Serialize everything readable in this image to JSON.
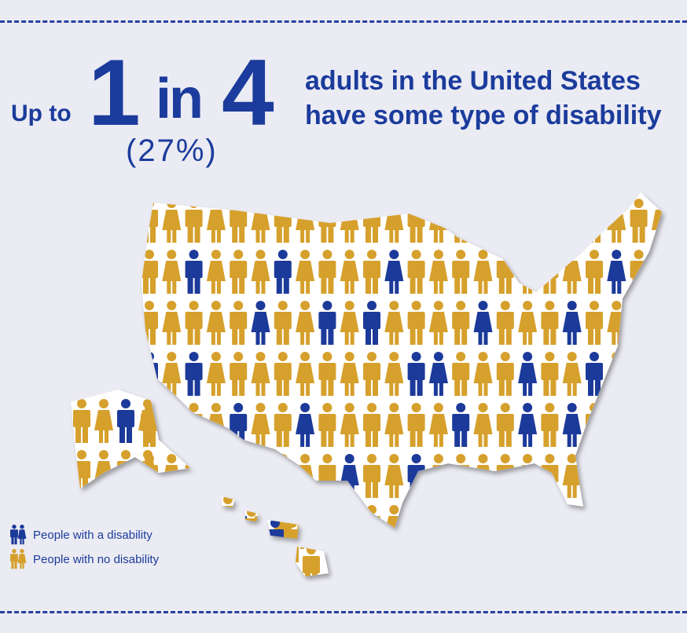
{
  "headline": {
    "prefix": "Up to",
    "numerator": "1",
    "word_in": "in",
    "denominator": "4",
    "percent": "(27%)",
    "line1": "adults in the United States",
    "line2": "have some type of disability"
  },
  "statistic": {
    "ratio": "1 in 4",
    "percent_value": 27
  },
  "colors": {
    "disability": "#1c3a9a",
    "no_disability": "#d6a02c",
    "background": "#ebebf3",
    "text": "#1b3c9c"
  },
  "legend": [
    {
      "label": "People with a disability",
      "icon": "people-pair-icon",
      "color": "#1c3a9a"
    },
    {
      "label": "People with no disability",
      "icon": "people-pair-icon",
      "color": "#d6a02c"
    }
  ]
}
